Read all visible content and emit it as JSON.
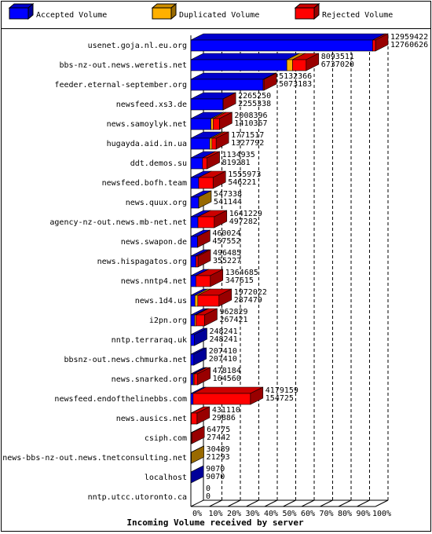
{
  "chart_data": {
    "type": "bar3d",
    "title": "Incoming Volume received by server",
    "categories": [
      "usenet.goja.nl.eu.org",
      "bbs-nz-out.news.weretis.net",
      "feeder.eternal-september.org",
      "newsfeed.xs3.de",
      "news.samoylyk.net",
      "hugayda.aid.in.ua",
      "ddt.demos.su",
      "newsfeed.bofh.team",
      "news.quux.org",
      "agency-nz-out.news.mb-net.net",
      "news.swapon.de",
      "news.hispagatos.org",
      "news.nntp4.net",
      "news.1d4.us",
      "i2pn.org",
      "nntp.terraraq.uk",
      "bbsnz-out.news.chmurka.net",
      "news.snarked.org",
      "newsfeed.endofthelinebbs.com",
      "news.ausics.net",
      "csiph.com",
      "news-bbs-nz-out.news.tnetconsulting.net",
      "localhost",
      "nntp.utcc.utoronto.ca"
    ],
    "series": [
      {
        "name": "Accepted Volume",
        "color": "#0000ff",
        "values": [
          12760626,
          6737020,
          5073183,
          2255338,
          1410367,
          1327792,
          819281,
          546221,
          541144,
          497282,
          457552,
          355227,
          347615,
          287479,
          267421,
          248241,
          207410,
          164560,
          154725,
          29886,
          27442,
          21293,
          9070,
          0
        ]
      },
      {
        "name": "Duplicated Volume",
        "color": "#ffb000",
        "values": [
          0,
          400000,
          0,
          0,
          150000,
          150000,
          0,
          0,
          6194,
          0,
          0,
          0,
          0,
          200000,
          80000,
          0,
          0,
          60000,
          0,
          0,
          0,
          9196,
          0,
          0
        ]
      },
      {
        "name": "Rejected Volume",
        "color": "#ff0000",
        "values": [
          198796,
          956491,
          59183,
          9912,
          448029,
          293725,
          315654,
          1009752,
          0,
          1143947,
          2472,
          141258,
          1017070,
          1484543,
          615408,
          0,
          0,
          253624,
          4024434,
          401224,
          37333,
          0,
          0,
          0
        ]
      }
    ],
    "totals": [
      12959422,
      8093511,
      5132366,
      2265250,
      2008396,
      1771517,
      1134935,
      1555973,
      547338,
      1641229,
      460024,
      496485,
      1364685,
      1972022,
      962829,
      248241,
      207410,
      478184,
      4179159,
      431110,
      64775,
      30489,
      9070,
      0
    ],
    "xlim": [
      0,
      12959422
    ],
    "xticks": [
      {
        "value": 0,
        "label": "0%"
      },
      {
        "value": 1295942.2,
        "label": "10%"
      },
      {
        "value": 2591884.4,
        "label": "20%"
      },
      {
        "value": 3887826.6,
        "label": "30%"
      },
      {
        "value": 5183768.8,
        "label": "40%"
      },
      {
        "value": 6479711,
        "label": "50%"
      },
      {
        "value": 7775653.2,
        "label": "60%"
      },
      {
        "value": 9071595.4,
        "label": "70%"
      },
      {
        "value": 10367537.6,
        "label": "80%"
      },
      {
        "value": 11663479.8,
        "label": "90%"
      },
      {
        "value": 12959422,
        "label": "100%"
      }
    ],
    "grid": true
  }
}
